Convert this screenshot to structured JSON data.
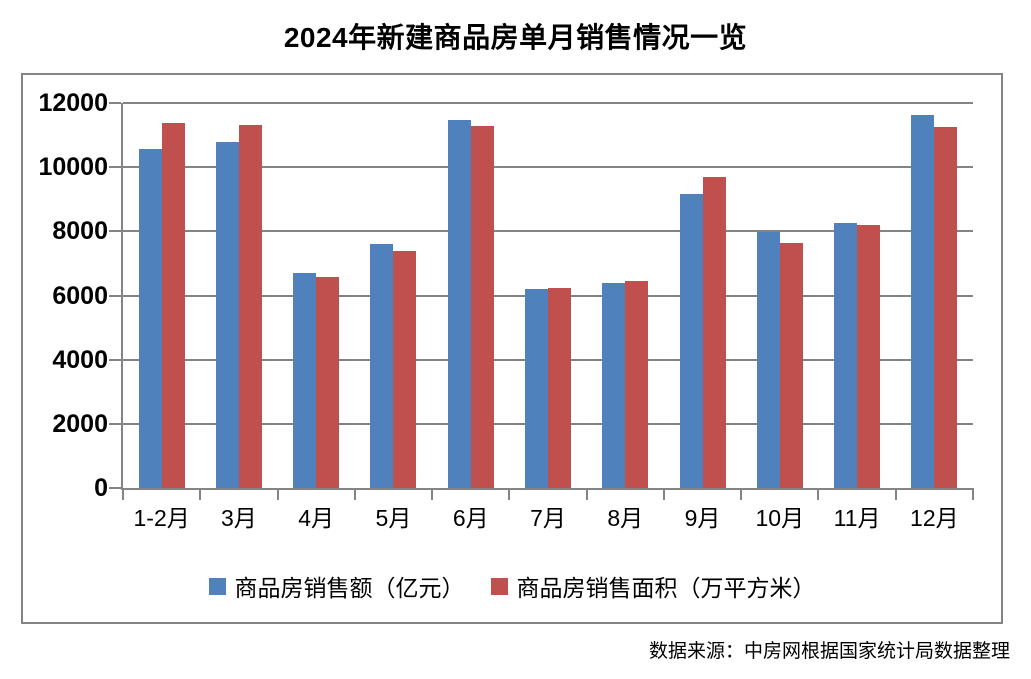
{
  "title": "2024年新建商品房单月销售情况一览",
  "footer": "数据来源：中房网根据国家统计局数据整理",
  "colors": {
    "series_sales_amount": "#4F81BD",
    "series_sales_area": "#C0504D",
    "gridline": "#848484",
    "border": "#848484",
    "text": "#000000"
  },
  "chart_data": {
    "type": "bar",
    "title": "2024年新建商品房单月销售情况一览",
    "categories": [
      "1-2月",
      "3月",
      "4月",
      "5月",
      "6月",
      "7月",
      "8月",
      "9月",
      "10月",
      "11月",
      "12月"
    ],
    "series": [
      {
        "name": "商品房销售额（亿元）",
        "color": "#4F81BD",
        "values": [
          10566,
          10789,
          6712,
          7598,
          11468,
          6197,
          6393,
          9157,
          7975,
          8270,
          11625
        ]
      },
      {
        "name": "商品房销售面积（万平方米）",
        "color": "#C0504D",
        "values": [
          11369,
          11299,
          6584,
          7390,
          11274,
          6233,
          6453,
          9682,
          7646,
          8188,
          11267
        ]
      }
    ],
    "ylim": [
      0,
      12000
    ],
    "ytick_step": 2000,
    "ytick_labels": [
      "0",
      "2000",
      "4000",
      "6000",
      "8000",
      "10000",
      "12000"
    ],
    "grid": true,
    "legend_position": "bottom",
    "source_note": "数据来源：中房网根据国家统计局数据整理"
  }
}
